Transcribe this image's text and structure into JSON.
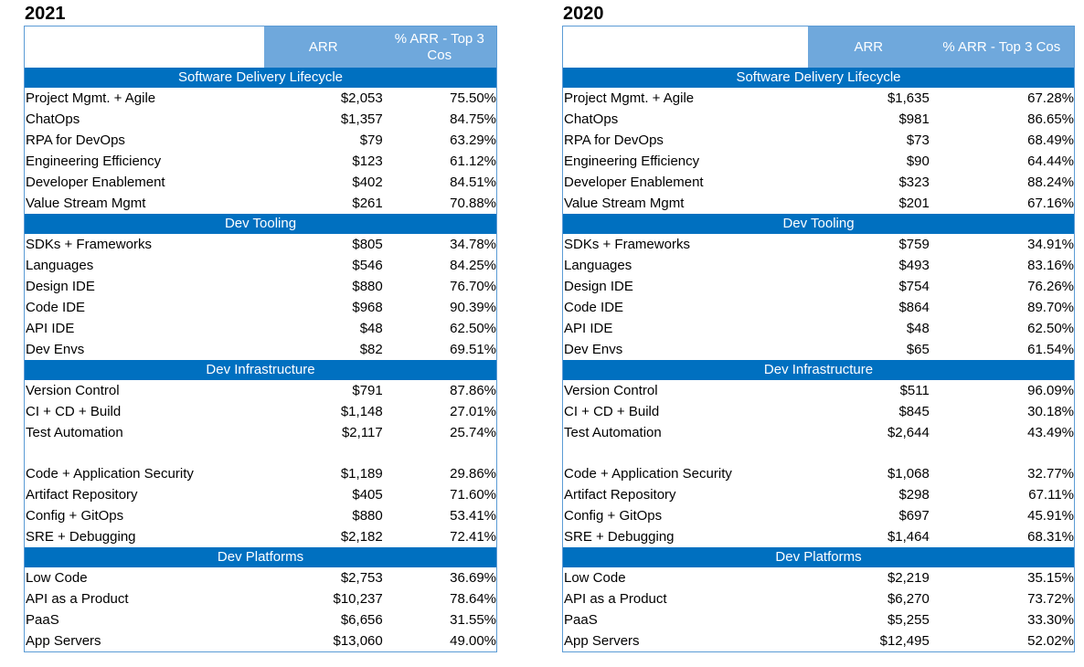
{
  "tables": [
    {
      "year": "2021",
      "headers": {
        "col2": "ARR",
        "col3": "% ARR - Top 3 Cos"
      },
      "sections": [
        {
          "title": "Software Delivery Lifecycle",
          "rows": [
            {
              "name": "Project Mgmt. + Agile",
              "arr": "$2,053",
              "pct": "75.50%"
            },
            {
              "name": "ChatOps",
              "arr": "$1,357",
              "pct": "84.75%"
            },
            {
              "name": "RPA for DevOps",
              "arr": "$79",
              "pct": "63.29%"
            },
            {
              "name": "Engineering Efficiency",
              "arr": "$123",
              "pct": "61.12%"
            },
            {
              "name": "Developer Enablement",
              "arr": "$402",
              "pct": "84.51%"
            },
            {
              "name": "Value Stream Mgmt",
              "arr": "$261",
              "pct": "70.88%"
            }
          ]
        },
        {
          "title": "Dev Tooling",
          "rows": [
            {
              "name": "SDKs + Frameworks",
              "arr": "$805",
              "pct": "34.78%"
            },
            {
              "name": "Languages",
              "arr": "$546",
              "pct": "84.25%"
            },
            {
              "name": "Design IDE",
              "arr": "$880",
              "pct": "76.70%"
            },
            {
              "name": "Code IDE",
              "arr": "$968",
              "pct": "90.39%"
            },
            {
              "name": "API IDE",
              "arr": "$48",
              "pct": "62.50%"
            },
            {
              "name": "Dev Envs",
              "arr": "$82",
              "pct": "69.51%"
            }
          ]
        },
        {
          "title": "Dev Infrastructure",
          "rows": [
            {
              "name": "Version Control",
              "arr": "$791",
              "pct": "87.86%"
            },
            {
              "name": "CI + CD + Build",
              "arr": "$1,148",
              "pct": "27.01%"
            },
            {
              "name": "Test Automation",
              "arr": "$2,117",
              "pct": "25.74%"
            },
            {
              "blank": true
            },
            {
              "name": "Code + Application Security",
              "arr": "$1,189",
              "pct": "29.86%"
            },
            {
              "name": "Artifact Repository",
              "arr": "$405",
              "pct": "71.60%"
            },
            {
              "name": "Config + GitOps",
              "arr": "$880",
              "pct": "53.41%"
            },
            {
              "name": "SRE + Debugging",
              "arr": "$2,182",
              "pct": "72.41%"
            }
          ]
        },
        {
          "title": "Dev Platforms",
          "rows": [
            {
              "name": "Low Code",
              "arr": "$2,753",
              "pct": "36.69%"
            },
            {
              "name": "API as a Product",
              "arr": "$10,237",
              "pct": "78.64%"
            },
            {
              "name": "PaaS",
              "arr": "$6,656",
              "pct": "31.55%"
            },
            {
              "name": "App Servers",
              "arr": "$13,060",
              "pct": "49.00%"
            }
          ]
        }
      ]
    },
    {
      "year": "2020",
      "headers": {
        "col2": "ARR",
        "col3": "% ARR - Top 3 Cos"
      },
      "sections": [
        {
          "title": "Software Delivery Lifecycle",
          "rows": [
            {
              "name": "Project Mgmt. + Agile",
              "arr": "$1,635",
              "pct": "67.28%"
            },
            {
              "name": "ChatOps",
              "arr": "$981",
              "pct": "86.65%"
            },
            {
              "name": "RPA for DevOps",
              "arr": "$73",
              "pct": "68.49%"
            },
            {
              "name": "Engineering Efficiency",
              "arr": "$90",
              "pct": "64.44%"
            },
            {
              "name": "Developer Enablement",
              "arr": "$323",
              "pct": "88.24%"
            },
            {
              "name": "Value Stream Mgmt",
              "arr": "$201",
              "pct": "67.16%"
            }
          ]
        },
        {
          "title": "Dev Tooling",
          "rows": [
            {
              "name": "SDKs + Frameworks",
              "arr": "$759",
              "pct": "34.91%"
            },
            {
              "name": "Languages",
              "arr": "$493",
              "pct": "83.16%"
            },
            {
              "name": "Design IDE",
              "arr": "$754",
              "pct": "76.26%"
            },
            {
              "name": "Code IDE",
              "arr": "$864",
              "pct": "89.70%"
            },
            {
              "name": "API IDE",
              "arr": "$48",
              "pct": "62.50%"
            },
            {
              "name": "Dev Envs",
              "arr": "$65",
              "pct": "61.54%"
            }
          ]
        },
        {
          "title": "Dev Infrastructure",
          "rows": [
            {
              "name": "Version Control",
              "arr": "$511",
              "pct": "96.09%"
            },
            {
              "name": "CI + CD + Build",
              "arr": "$845",
              "pct": "30.18%"
            },
            {
              "name": "Test Automation",
              "arr": "$2,644",
              "pct": "43.49%"
            },
            {
              "blank": true
            },
            {
              "name": "Code + Application Security",
              "arr": "$1,068",
              "pct": "32.77%"
            },
            {
              "name": "Artifact Repository",
              "arr": "$298",
              "pct": "67.11%"
            },
            {
              "name": "Config + GitOps",
              "arr": "$697",
              "pct": "45.91%"
            },
            {
              "name": "SRE + Debugging",
              "arr": "$1,464",
              "pct": "68.31%"
            }
          ]
        },
        {
          "title": "Dev Platforms",
          "rows": [
            {
              "name": "Low Code",
              "arr": "$2,219",
              "pct": "35.15%"
            },
            {
              "name": "API as a Product",
              "arr": "$6,270",
              "pct": "73.72%"
            },
            {
              "name": "PaaS",
              "arr": "$5,255",
              "pct": "33.30%"
            },
            {
              "name": "App Servers",
              "arr": "$12,495",
              "pct": "52.02%"
            }
          ]
        }
      ]
    }
  ]
}
